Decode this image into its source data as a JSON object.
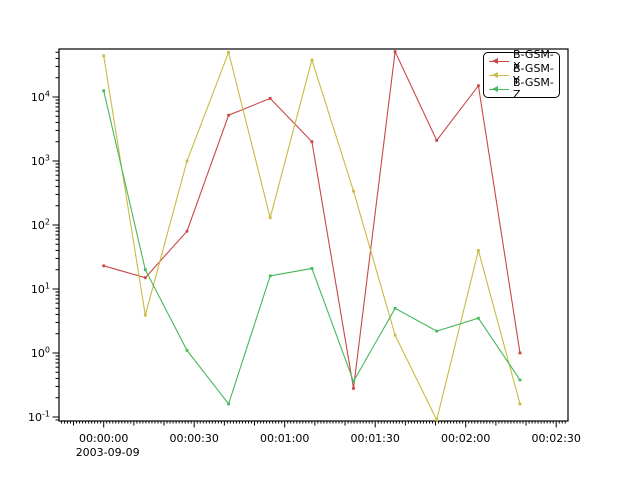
{
  "chart_data": {
    "type": "line",
    "title": "",
    "x_axis": {
      "tick_labels": [
        "00:00:00",
        "00:00:30",
        "00:01:00",
        "00:01:30",
        "00:02:00",
        "00:02:30"
      ],
      "tick_seconds": [
        0,
        30,
        60,
        90,
        120,
        150
      ],
      "date_label": "2003-09-09",
      "range_seconds": [
        -14.8,
        153.9
      ]
    },
    "y_axis": {
      "scale": "log",
      "tick_exponents": [
        4,
        3,
        2,
        1,
        0,
        -1
      ],
      "range": [
        0.087,
        56000
      ]
    },
    "x_seconds": [
      0,
      13.8,
      27.6,
      41.4,
      55.2,
      69,
      82.8,
      96.6,
      110.4,
      124.2,
      138
    ],
    "x_labels": [
      "00:00:00",
      "00:00:14",
      "00:00:28",
      "00:00:41",
      "00:00:55",
      "00:01:09",
      "00:01:23",
      "00:01:37",
      "00:01:50",
      "00:02:04",
      "00:02:18"
    ],
    "series": [
      {
        "name": "B-GSM-X",
        "color": "#c94747",
        "values": [
          23,
          15,
          80,
          5200,
          9500,
          2000,
          0.28,
          51000,
          2100,
          15000,
          1.0
        ]
      },
      {
        "name": "B-GSM-Y",
        "color": "#c9bb44",
        "values": [
          44000,
          3.9,
          1000,
          50000,
          130,
          38000,
          340,
          1.9,
          0.09,
          40,
          0.16
        ]
      },
      {
        "name": "B-GSM-Z",
        "color": "#47b85c",
        "values": [
          12500,
          20,
          1.1,
          0.16,
          16,
          21,
          0.36,
          5.0,
          2.2,
          3.5,
          0.38
        ]
      }
    ],
    "legend": {
      "position": "top-right",
      "entries": [
        "B-GSM-X",
        "B-GSM-Y",
        "B-GSM-Z"
      ]
    }
  }
}
